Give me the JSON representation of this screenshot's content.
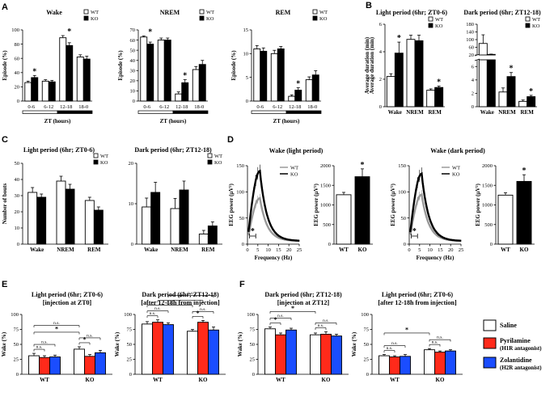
{
  "panel_labels": [
    "A",
    "B",
    "C",
    "D",
    "E",
    "F"
  ],
  "legend": {
    "wt": "WT",
    "ko": "KO"
  },
  "drug_legend": {
    "saline": "Saline",
    "pyr_line1": "Pyrilamine",
    "pyr_line2": "(H1R antagonist)",
    "zol_line1": "Zolantidine",
    "zol_line2": "(H2R antagonist)"
  },
  "colors": {
    "wt": "#ffffff",
    "ko": "#000000",
    "saline": "#ffffff",
    "pyrilamine": "#ff2a1a",
    "zolantidine": "#1a4dff",
    "wt_trace": "#9a9a9a",
    "ko_trace": "#000000"
  },
  "chart_data": [
    {
      "id": "A1",
      "type": "bar",
      "title": "Wake",
      "xlabel": "ZT (hours)",
      "ylabel": "Episode (%)",
      "categories": [
        "0-6",
        "6-12",
        "12-18",
        "18-0"
      ],
      "ylim": [
        0,
        100
      ],
      "yticks": [
        "0",
        "20",
        "40",
        "60",
        "80",
        "100"
      ],
      "series": [
        {
          "name": "WT",
          "values": [
            26,
            28,
            89,
            62
          ],
          "err": [
            2,
            2,
            3,
            3
          ]
        },
        {
          "name": "KO",
          "values": [
            33,
            27,
            78,
            59
          ],
          "err": [
            3,
            2,
            4,
            4
          ]
        }
      ],
      "sig": [
        "*",
        "",
        "*",
        ""
      ]
    },
    {
      "id": "A2",
      "type": "bar",
      "title": "NREM",
      "xlabel": "ZT (hours)",
      "ylabel": "Episode (%)",
      "categories": [
        "0-6",
        "6-12",
        "12-18",
        "18-0"
      ],
      "ylim": [
        0,
        70
      ],
      "yticks": [
        "0",
        "10",
        "20",
        "30",
        "40",
        "50",
        "60",
        "70"
      ],
      "series": [
        {
          "name": "WT",
          "values": [
            63,
            60,
            7,
            31
          ],
          "err": [
            1,
            2,
            2,
            3
          ]
        },
        {
          "name": "KO",
          "values": [
            56,
            60,
            18,
            36
          ],
          "err": [
            2,
            2,
            3,
            4
          ]
        }
      ],
      "sig": [
        "*",
        "",
        "*",
        ""
      ]
    },
    {
      "id": "A3",
      "type": "bar",
      "title": "REM",
      "xlabel": "ZT (hours)",
      "ylabel": "Episode (%)",
      "categories": [
        "0-6",
        "6-12",
        "12-18",
        "18-0"
      ],
      "ylim": [
        0,
        15
      ],
      "yticks": [
        "0",
        "5",
        "10",
        "15"
      ],
      "series": [
        {
          "name": "WT",
          "values": [
            11,
            10,
            1,
            4.5
          ],
          "err": [
            0.7,
            0.7,
            0.3,
            0.6
          ]
        },
        {
          "name": "KO",
          "values": [
            10.5,
            11,
            2.3,
            5.5
          ],
          "err": [
            0.7,
            0.5,
            0.5,
            0.9
          ]
        }
      ],
      "sig": [
        "",
        "",
        "*",
        ""
      ]
    },
    {
      "id": "B1",
      "type": "bar",
      "title": "Light period (6hr; ZT0-6)",
      "ylabel": "Average duration (min)",
      "categories": [
        "Wake",
        "NREM",
        "REM"
      ],
      "ylim": [
        0,
        6
      ],
      "yticks": [
        "0",
        "2",
        "4",
        "6"
      ],
      "series": [
        {
          "name": "WT",
          "values": [
            2.2,
            4.9,
            1.2
          ],
          "err": [
            0.2,
            0.3,
            0.1
          ]
        },
        {
          "name": "KO",
          "values": [
            3.9,
            4.8,
            1.4
          ],
          "err": [
            0.8,
            0.4,
            0.1
          ]
        }
      ],
      "sig": [
        "*",
        "",
        "*"
      ]
    },
    {
      "id": "B2",
      "type": "bar",
      "title": "Dark period (6hr; ZT12-18)",
      "ylabel": "",
      "categories": [
        "Wake",
        "NREM",
        "REM"
      ],
      "ylim": [
        0,
        180
      ],
      "broken_axis": "upper 20-180, lower 0-8",
      "yticks": [
        "0",
        "2",
        "4",
        "6",
        "20",
        "60",
        "100",
        "140",
        "180"
      ],
      "series": [
        {
          "name": "WT",
          "values": [
            80,
            2.2,
            0.8
          ],
          "err": [
            45,
            0.6,
            0.2
          ]
        },
        {
          "name": "KO",
          "values": [
            23,
            4.5,
            1.5
          ],
          "err": [
            1.5,
            0.6,
            0.2
          ]
        }
      ],
      "sig": [
        "",
        "*",
        "*"
      ]
    },
    {
      "id": "C1",
      "type": "bar",
      "title": "Light period (6hr; ZT0-6)",
      "ylabel": "Number of bouts",
      "categories": [
        "Wake",
        "NREM",
        "REM"
      ],
      "ylim": [
        0,
        50
      ],
      "yticks": [
        "0",
        "10",
        "20",
        "30",
        "40",
        "50"
      ],
      "series": [
        {
          "name": "WT",
          "values": [
            32,
            39,
            27
          ],
          "err": [
            3,
            3,
            2
          ]
        },
        {
          "name": "KO",
          "values": [
            29,
            34,
            21
          ],
          "err": [
            2,
            3,
            2
          ]
        }
      ],
      "sig": [
        "",
        "",
        ""
      ]
    },
    {
      "id": "C2",
      "type": "bar",
      "title": "Dark period (6hr; ZT12-18)",
      "ylabel": "",
      "categories": [
        "Wake",
        "NREM",
        "REM"
      ],
      "ylim": [
        0,
        20
      ],
      "yticks": [
        "0",
        "10",
        "20"
      ],
      "series": [
        {
          "name": "WT",
          "values": [
            9.2,
            8.8,
            2.5
          ],
          "err": [
            2.2,
            2.5,
            0.9
          ]
        },
        {
          "name": "KO",
          "values": [
            12.8,
            13.4,
            4.5
          ],
          "err": [
            2.5,
            2.2,
            1.0
          ]
        }
      ],
      "sig": [
        "",
        "",
        ""
      ]
    },
    {
      "id": "D1",
      "type": "line",
      "title": "Wake (light period)",
      "xlabel": "Frequency (Hz)",
      "ylabel": "EEG power (μV²)",
      "xlim": [
        0,
        25
      ],
      "ylim": [
        0,
        150
      ],
      "xticks": [
        "0",
        "5",
        "10",
        "15",
        "20",
        "25"
      ],
      "yticks": [
        "0",
        "50",
        "100",
        "150"
      ],
      "series": [
        {
          "name": "WT",
          "peak_hz": 6,
          "peak": 88
        },
        {
          "name": "KO",
          "peak_hz": 6,
          "peak": 140
        }
      ],
      "sig": "*"
    },
    {
      "id": "D2",
      "type": "bar",
      "title": "",
      "ylabel": "EEG power (μV²)",
      "categories": [
        "WT",
        "KO"
      ],
      "ylim": [
        0,
        2000
      ],
      "yticks": [
        "0",
        "500",
        "1000",
        "1500",
        "2000"
      ],
      "series": [
        {
          "name": "power",
          "values": [
            1260,
            1720
          ],
          "err": [
            60,
            200
          ]
        }
      ],
      "sig": [
        "",
        "*"
      ]
    },
    {
      "id": "D3",
      "type": "line",
      "title": "Wake (dark period)",
      "xlabel": "Frequency (Hz)",
      "ylabel": "EEG power (μV²)",
      "xlim": [
        0,
        25
      ],
      "ylim": [
        0,
        150
      ],
      "xticks": [
        "0",
        "5",
        "10",
        "15",
        "20",
        "25"
      ],
      "yticks": [
        "0",
        "50",
        "100",
        "150"
      ],
      "series": [
        {
          "name": "WT",
          "peak_hz": 6,
          "peak": 95
        },
        {
          "name": "KO",
          "peak_hz": 6,
          "peak": 135
        }
      ],
      "sig": "*"
    },
    {
      "id": "D4",
      "type": "bar",
      "title": "",
      "ylabel": "EEG power (μV²)",
      "categories": [
        "WT",
        "KO"
      ],
      "ylim": [
        0,
        2000
      ],
      "yticks": [
        "0",
        "500",
        "1000",
        "1500",
        "2000"
      ],
      "series": [
        {
          "name": "power",
          "values": [
            1250,
            1600
          ],
          "err": [
            60,
            170
          ]
        }
      ],
      "sig": [
        "",
        "*"
      ]
    },
    {
      "id": "E1",
      "type": "bar",
      "title": "Light period (6hr; ZT0-6)",
      "subtitle": "[injection at ZT0]",
      "ylabel": "Wake (%)",
      "categories": [
        "WT",
        "KO"
      ],
      "ylim": [
        0,
        100
      ],
      "yticks": [
        "0",
        "25",
        "50",
        "75",
        "100"
      ],
      "series": [
        {
          "name": "Saline",
          "values": [
            31,
            42
          ],
          "err": [
            4,
            4
          ]
        },
        {
          "name": "Pyrilamine",
          "values": [
            28,
            30
          ],
          "err": [
            3,
            3
          ]
        },
        {
          "name": "Zolantidine",
          "values": [
            29,
            36
          ],
          "err": [
            3,
            4
          ]
        }
      ]
    },
    {
      "id": "E2",
      "type": "bar",
      "title": "Dark period (6hr; ZT12-18)",
      "subtitle": "[after 12-18h from injection]",
      "ylabel": "Wake (%)",
      "categories": [
        "WT",
        "KO"
      ],
      "ylim": [
        0,
        100
      ],
      "yticks": [
        "0",
        "25",
        "50",
        "75",
        "100"
      ],
      "series": [
        {
          "name": "Saline",
          "values": [
            84,
            72
          ],
          "err": [
            4,
            3
          ]
        },
        {
          "name": "Pyrilamine",
          "values": [
            87,
            87
          ],
          "err": [
            4,
            3
          ]
        },
        {
          "name": "Zolantidine",
          "values": [
            83,
            74
          ],
          "err": [
            3,
            5
          ]
        }
      ]
    },
    {
      "id": "F1",
      "type": "bar",
      "title": "Dark period (6hr; ZT12-18)",
      "subtitle": "[injection at ZT12]",
      "ylabel": "Wake (%)",
      "categories": [
        "WT",
        "KO"
      ],
      "ylim": [
        0,
        100
      ],
      "yticks": [
        "0",
        "25",
        "50",
        "75",
        "100"
      ],
      "series": [
        {
          "name": "Saline",
          "values": [
            76,
            66
          ],
          "err": [
            3,
            3
          ]
        },
        {
          "name": "Pyrilamine",
          "values": [
            66,
            67
          ],
          "err": [
            3,
            4
          ]
        },
        {
          "name": "Zolantidine",
          "values": [
            74,
            64
          ],
          "err": [
            3,
            3
          ]
        }
      ]
    },
    {
      "id": "F2",
      "type": "bar",
      "title": "Light period (6hr; ZT0-6)",
      "subtitle": "[after 12-18h from injection]",
      "ylabel": "Wake (%)",
      "categories": [
        "WT",
        "KO"
      ],
      "ylim": [
        0,
        100
      ],
      "yticks": [
        "0",
        "25",
        "50",
        "75",
        "100"
      ],
      "series": [
        {
          "name": "Saline",
          "values": [
            31,
            41
          ],
          "err": [
            2,
            2
          ]
        },
        {
          "name": "Pyrilamine",
          "values": [
            29,
            37
          ],
          "err": [
            2,
            2
          ]
        },
        {
          "name": "Zolantidine",
          "values": [
            30,
            39
          ],
          "err": [
            3,
            2
          ]
        }
      ]
    }
  ],
  "sig_labels": {
    "star": "*",
    "ns": "n.s."
  }
}
